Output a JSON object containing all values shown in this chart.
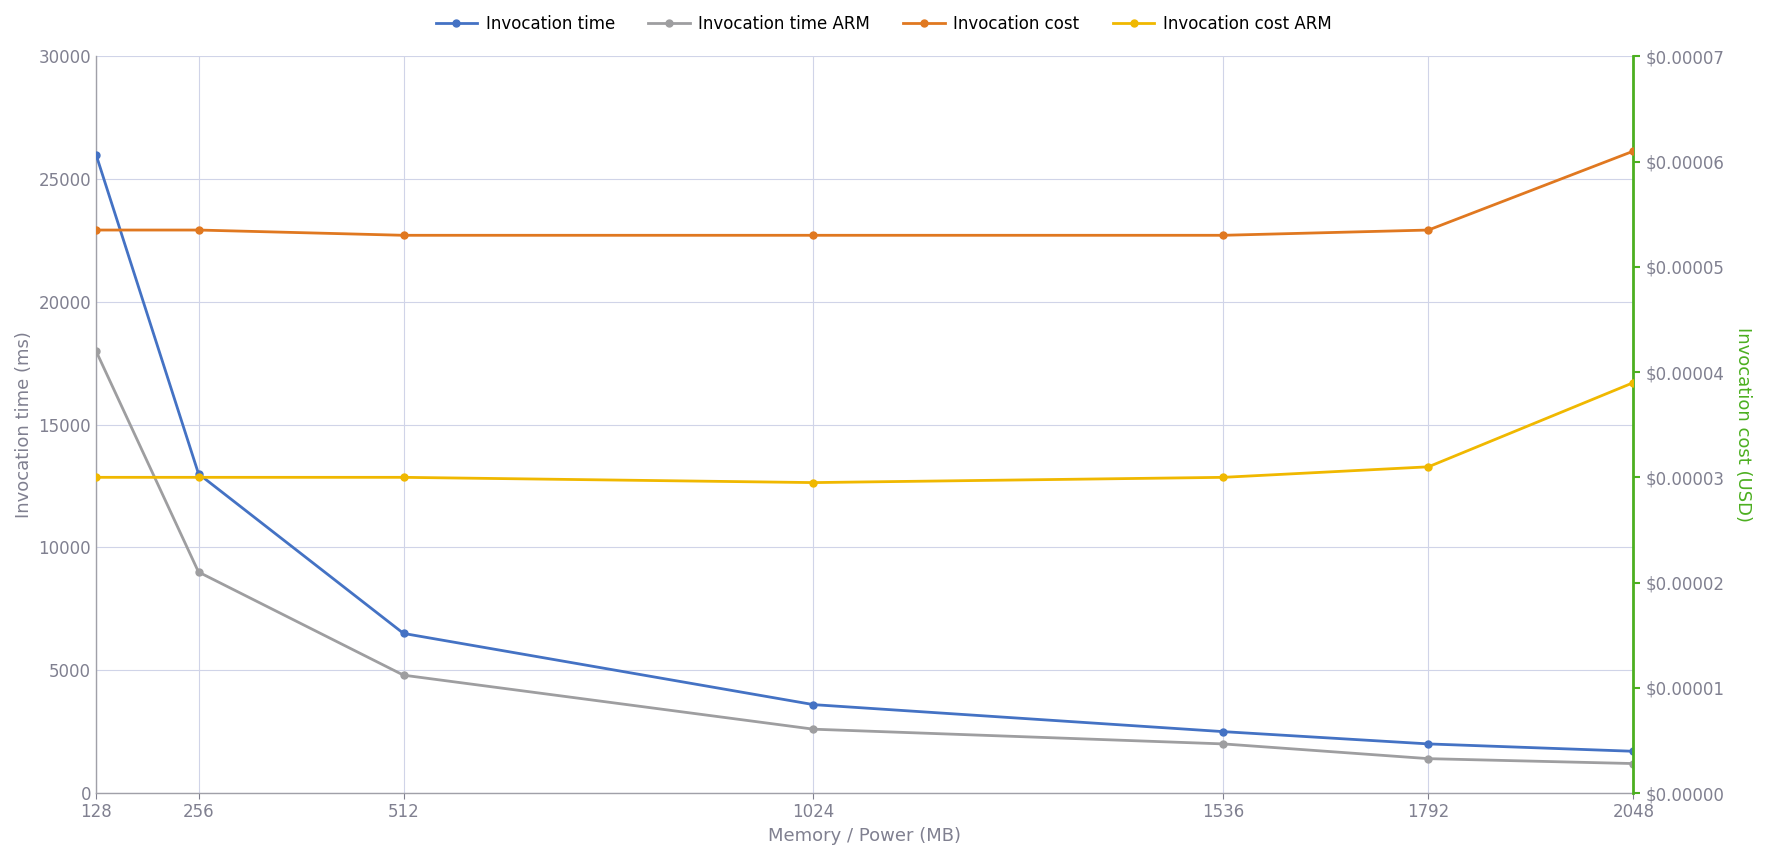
{
  "x": [
    128,
    256,
    512,
    1024,
    1536,
    1792,
    2048
  ],
  "invocation_time": [
    26000,
    13000,
    6500,
    3600,
    2500,
    2000,
    1700
  ],
  "invocation_time_arm": [
    18000,
    9000,
    4800,
    2600,
    2000,
    1400,
    1200
  ],
  "invocation_cost": [
    5.35e-05,
    5.35e-05,
    5.3e-05,
    5.3e-05,
    5.3e-05,
    5.35e-05,
    6.1e-05
  ],
  "invocation_cost_arm": [
    3e-05,
    3e-05,
    3e-05,
    2.95e-05,
    3e-05,
    3.1e-05,
    3.9e-05
  ],
  "legend_labels": [
    "Invocation time",
    "Invocation time ARM",
    "Invocation cost",
    "Invocation cost ARM"
  ],
  "line_colors": [
    "#4472c4",
    "#9e9ea0",
    "#e07820",
    "#f0b800"
  ],
  "xlabel": "Memory / Power (MB)",
  "ylabel_left": "Invocation time (ms)",
  "ylabel_right": "Invocation cost (USD)",
  "ylim_left": [
    0,
    30000
  ],
  "ylim_right": [
    0,
    7e-05
  ],
  "yticks_left": [
    0,
    5000,
    10000,
    15000,
    20000,
    25000,
    30000
  ],
  "yticks_right": [
    0.0,
    1e-05,
    2e-05,
    3e-05,
    4e-05,
    5e-05,
    6e-05,
    7e-05
  ],
  "bg_color": "#ffffff",
  "grid_color": "#d0d4e8",
  "right_axis_color": "#4caf20",
  "left_spine_color": "#a0a0a8",
  "tick_label_color": "#808090",
  "axis_label_color": "#808090"
}
